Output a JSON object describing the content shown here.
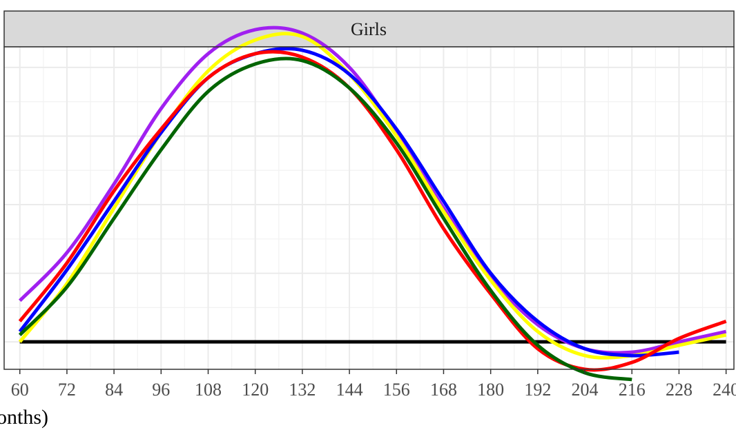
{
  "chart_data": {
    "type": "line",
    "facet_label": "Girls",
    "xlabel": "nonths)",
    "ylabel": "",
    "xlim": [
      56,
      242
    ],
    "ylim": [
      -0.08,
      0.86
    ],
    "x_ticks": [
      60,
      72,
      84,
      96,
      108,
      120,
      132,
      144,
      156,
      168,
      180,
      192,
      204,
      216,
      228,
      240
    ],
    "x_tick_labels": [
      "60",
      "72",
      "84",
      "96",
      "108",
      "120",
      "132",
      "144",
      "156",
      "168",
      "180",
      "192",
      "204",
      "216",
      "228",
      "240"
    ],
    "y_gridlines": [
      0,
      0.2,
      0.4,
      0.6,
      0.8
    ],
    "y_tick_labels_visible": false,
    "grid": true,
    "legend": "none",
    "reference_line": {
      "y": 0,
      "color": "#000000"
    },
    "series": [
      {
        "color": "#a020f0",
        "x": [
          60,
          72,
          84,
          96,
          108,
          120,
          132,
          144,
          156,
          168,
          180,
          192,
          204,
          216,
          228,
          240
        ],
        "y": [
          0.12,
          0.26,
          0.46,
          0.68,
          0.84,
          0.91,
          0.9,
          0.8,
          0.61,
          0.39,
          0.19,
          0.05,
          -0.02,
          -0.03,
          0.0,
          0.03
        ]
      },
      {
        "color": "#ffff00",
        "x": [
          60,
          72,
          84,
          96,
          108,
          120,
          132,
          144,
          156,
          168,
          180,
          192,
          204,
          216,
          228,
          240
        ],
        "y": [
          0.0,
          0.17,
          0.39,
          0.61,
          0.79,
          0.88,
          0.89,
          0.78,
          0.6,
          0.38,
          0.18,
          0.03,
          -0.04,
          -0.04,
          -0.01,
          0.02
        ]
      },
      {
        "color": "#0000ff",
        "x": [
          60,
          72,
          84,
          96,
          108,
          120,
          132,
          144,
          156,
          168,
          180,
          192,
          204,
          216,
          228
        ],
        "y": [
          0.03,
          0.21,
          0.41,
          0.61,
          0.77,
          0.84,
          0.85,
          0.78,
          0.62,
          0.41,
          0.2,
          0.06,
          -0.02,
          -0.04,
          -0.03
        ]
      },
      {
        "color": "#ff0000",
        "x": [
          60,
          72,
          84,
          96,
          108,
          120,
          132,
          144,
          156,
          168,
          180,
          192,
          204,
          216,
          228,
          240
        ],
        "y": [
          0.06,
          0.23,
          0.44,
          0.62,
          0.77,
          0.84,
          0.83,
          0.74,
          0.56,
          0.33,
          0.14,
          -0.02,
          -0.08,
          -0.06,
          0.01,
          0.06
        ]
      },
      {
        "color": "#006400",
        "x": [
          60,
          72,
          84,
          96,
          108,
          120,
          132,
          144,
          156,
          168,
          180,
          192,
          204,
          216
        ],
        "y": [
          0.02,
          0.16,
          0.36,
          0.56,
          0.73,
          0.81,
          0.82,
          0.74,
          0.58,
          0.36,
          0.15,
          -0.01,
          -0.09,
          -0.11
        ]
      }
    ]
  }
}
